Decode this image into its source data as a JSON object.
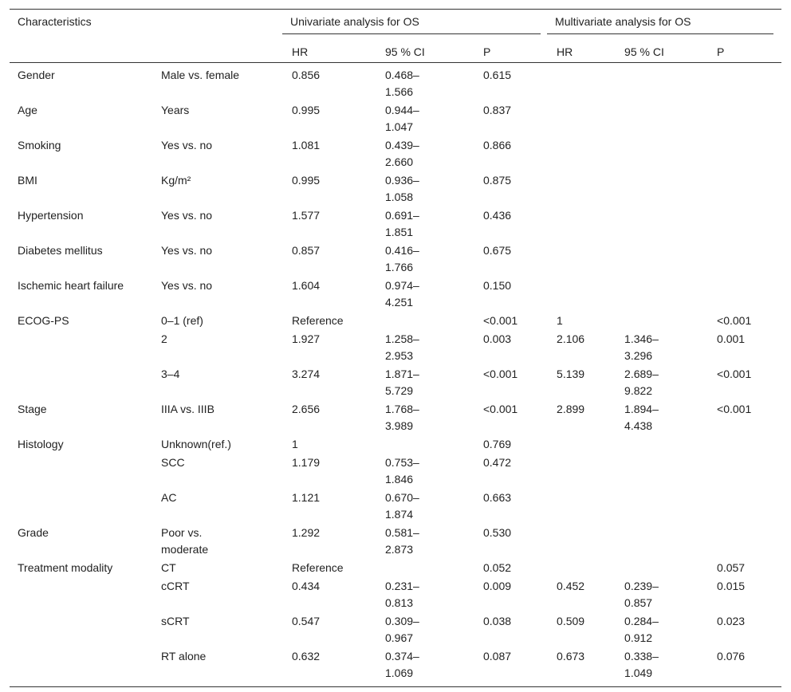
{
  "header": {
    "characteristics": "Characteristics",
    "univariate": "Univariate analysis for OS",
    "multivariate": "Multivariate analysis for OS",
    "sub": [
      "HR",
      "95 % CI",
      "P",
      "HR",
      "95 % CI",
      "P"
    ]
  },
  "table": {
    "rows": [
      [
        "Gender",
        "Male vs. female",
        "0.856",
        "0.468–1.566",
        "0.615",
        null,
        null,
        null
      ],
      [
        "Age",
        "Years",
        "0.995",
        "0.944–1.047",
        "0.837",
        null,
        null,
        null
      ],
      [
        "Smoking",
        "Yes vs. no",
        "1.081",
        "0.439–2.660",
        "0.866",
        null,
        null,
        null
      ],
      [
        "BMI",
        "Kg/m²",
        "0.995",
        "0.936–1.058",
        "0.875",
        null,
        null,
        null
      ],
      [
        "Hypertension",
        "Yes vs. no",
        "1.577",
        "0.691–1.851",
        "0.436",
        null,
        null,
        null
      ],
      [
        "Diabetes mellitus",
        "Yes vs. no",
        "0.857",
        "0.416–1.766",
        "0.675",
        null,
        null,
        null
      ],
      [
        "Ischemic heart failure",
        "Yes vs. no",
        "1.604",
        "0.974–4.251",
        "0.150",
        null,
        null,
        null
      ],
      [
        "ECOG-PS",
        "0–1 (ref)",
        "Reference",
        null,
        "<0.001",
        "1",
        null,
        "<0.001"
      ],
      [
        null,
        "2",
        "1.927",
        "1.258–2.953",
        "0.003",
        "2.106",
        "1.346–3.296",
        "0.001"
      ],
      [
        null,
        "3–4",
        "3.274",
        "1.871–5.729",
        "<0.001",
        "5.139",
        "2.689–9.822",
        "<0.001"
      ],
      [
        "Stage",
        "IIIA vs. IIIB",
        "2.656",
        "1.768–3.989",
        "<0.001",
        "2.899",
        "1.894–4.438",
        "<0.001"
      ],
      [
        "Histology",
        "Unknown(ref.)",
        "1",
        null,
        "0.769",
        null,
        null,
        null
      ],
      [
        null,
        "SCC",
        "1.179",
        "0.753–1.846",
        "0.472",
        null,
        null,
        null
      ],
      [
        null,
        "AC",
        "1.121",
        "0.670–1.874",
        "0.663",
        null,
        null,
        null
      ],
      [
        "Grade",
        "Poor vs. moderate",
        "1.292",
        "0.581–2.873",
        "0.530",
        null,
        null,
        null
      ],
      [
        "Treatment modality",
        "CT",
        "Reference",
        null,
        "0.052",
        null,
        null,
        "0.057"
      ],
      [
        null,
        "cCRT",
        "0.434",
        "0.231–0.813",
        "0.009",
        "0.452",
        "0.239–0.857",
        "0.015"
      ],
      [
        null,
        "sCRT",
        "0.547",
        "0.309–0.967",
        "0.038",
        "0.509",
        "0.284–0.912",
        "0.023"
      ],
      [
        null,
        "RT alone",
        "0.632",
        "0.374–1.069",
        "0.087",
        "0.673",
        "0.338–1.049",
        "0.076"
      ]
    ]
  }
}
